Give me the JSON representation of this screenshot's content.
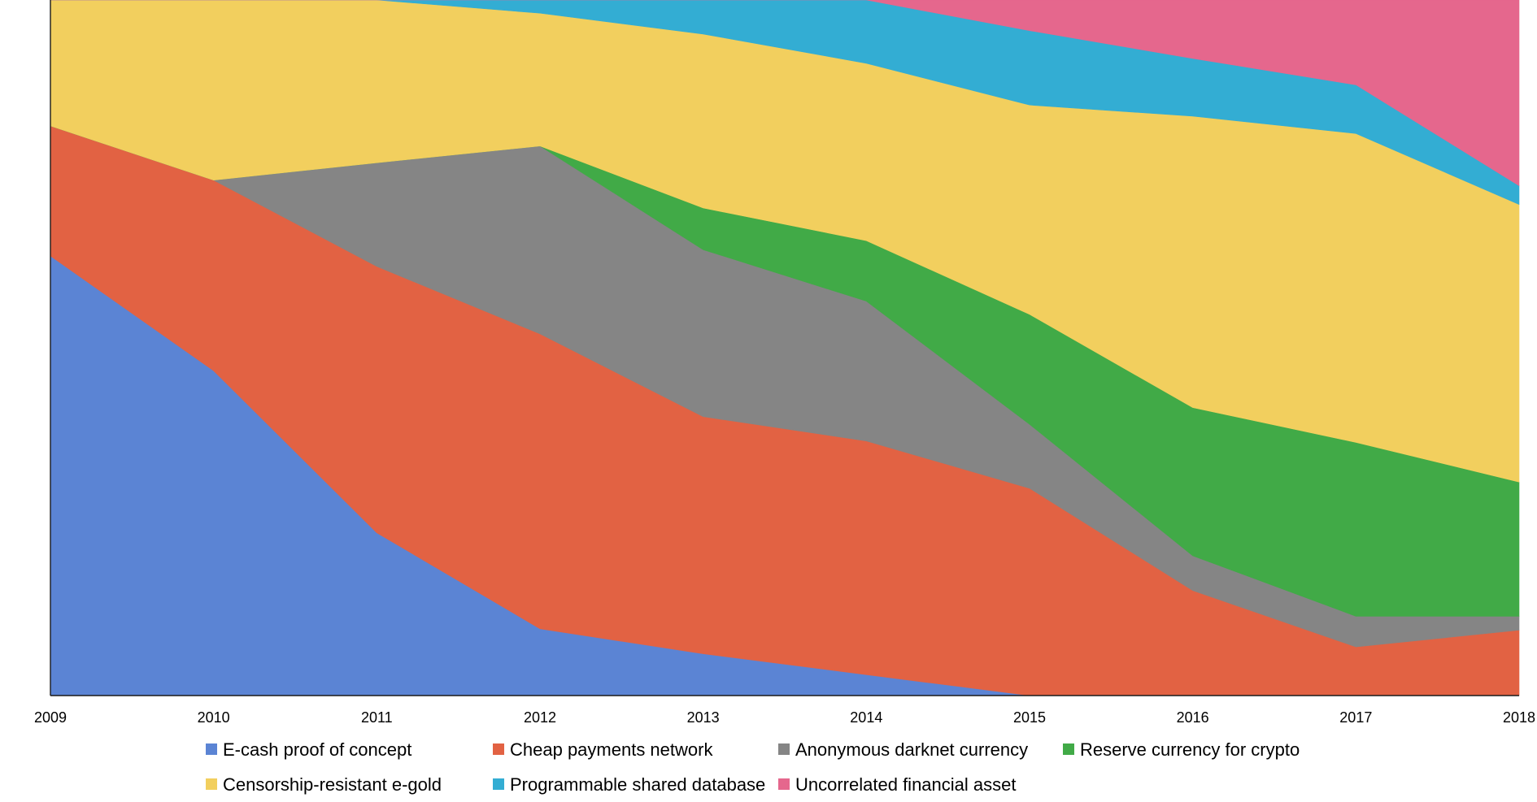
{
  "chart_data": {
    "type": "area",
    "stacked": true,
    "normalized": true,
    "title": "",
    "xlabel": "",
    "ylabel": "",
    "ylim": [
      0,
      1
    ],
    "grid": false,
    "legend_position": "bottom",
    "x": [
      "2009",
      "2010",
      "2011",
      "2012",
      "2013",
      "2014",
      "2015",
      "2016",
      "2017",
      "2018"
    ],
    "series": [
      {
        "name": "E-cash proof of concept",
        "color": "#5B84D4",
        "values": [
          0.632,
          0.467,
          0.234,
          0.096,
          0.06,
          0.03,
          0.0,
          0.0,
          0.0,
          0.0
        ]
      },
      {
        "name": "Cheap payments network",
        "color": "#E26243",
        "values": [
          0.187,
          0.274,
          0.383,
          0.424,
          0.341,
          0.336,
          0.298,
          0.151,
          0.07,
          0.094
        ]
      },
      {
        "name": "Anonymous darknet currency",
        "color": "#858585",
        "values": [
          0.0,
          0.0,
          0.149,
          0.27,
          0.24,
          0.201,
          0.092,
          0.05,
          0.044,
          0.02
        ]
      },
      {
        "name": "Reserve currency for crypto",
        "color": "#41AA47",
        "values": [
          0.0,
          0.0,
          0.0,
          0.0,
          0.06,
          0.087,
          0.158,
          0.213,
          0.25,
          0.193
        ]
      },
      {
        "name": "Censorship-resistant e-gold",
        "color": "#F2CF5E",
        "values": [
          0.181,
          0.259,
          0.234,
          0.191,
          0.25,
          0.255,
          0.301,
          0.419,
          0.444,
          0.399
        ]
      },
      {
        "name": "Programmable shared database",
        "color": "#33ADD3",
        "values": [
          0.0,
          0.0,
          0.0,
          0.019,
          0.049,
          0.091,
          0.107,
          0.083,
          0.07,
          0.027
        ]
      },
      {
        "name": "Uncorrelated financial asset",
        "color": "#E5678D",
        "values": [
          0.0,
          0.0,
          0.0,
          0.0,
          0.0,
          0.0,
          0.044,
          0.084,
          0.122,
          0.267
        ]
      }
    ]
  }
}
